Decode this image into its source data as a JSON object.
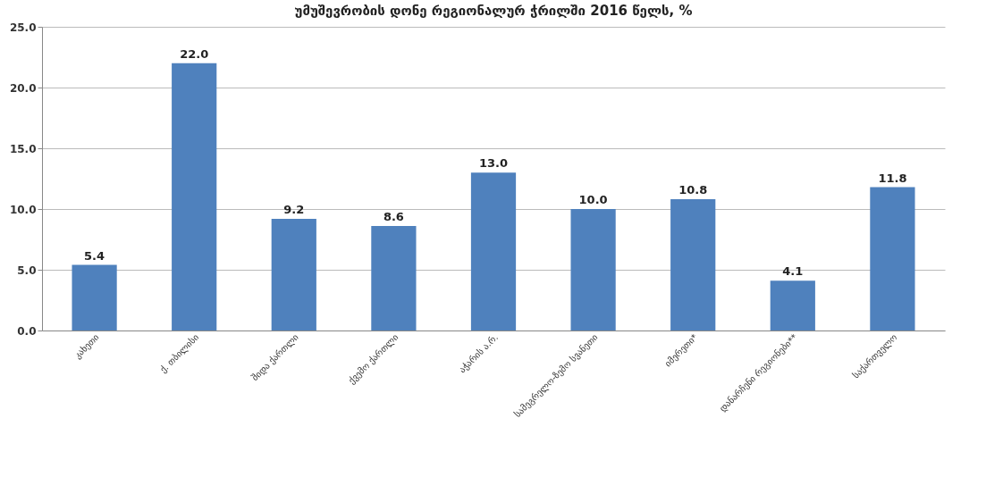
{
  "chart_data": {
    "type": "bar",
    "title": "უმუშევრობის დონე რეგიონალურ ჭრილში 2016 წელს, %",
    "categories": [
      "კახეთი",
      "ქ. თბილისი",
      "შიდა ქართლი",
      "ქვემო ქართლი",
      "აჭარის ა.რ.",
      "სამეგრელო-ზემო სვანეთი",
      "იმერეთი*",
      "დანარჩენი რეგიონები**",
      "საქართველო"
    ],
    "values": [
      5.4,
      22.0,
      9.2,
      8.6,
      13.0,
      10.0,
      10.8,
      4.1,
      11.8
    ],
    "value_labels": [
      "5.4",
      "22.0",
      "9.2",
      "8.6",
      "13.0",
      "10.0",
      "10.8",
      "4.1",
      "11.8"
    ],
    "color": "#4f81bd",
    "ylim": [
      0,
      25
    ],
    "yticks": [
      {
        "value": 0,
        "label": "0.0"
      },
      {
        "value": 5,
        "label": "5.0"
      },
      {
        "value": 10,
        "label": "10.0"
      },
      {
        "value": 15,
        "label": "15.0"
      },
      {
        "value": 20,
        "label": "20.0"
      },
      {
        "value": 25,
        "label": "25.0"
      }
    ],
    "grid": "y"
  }
}
